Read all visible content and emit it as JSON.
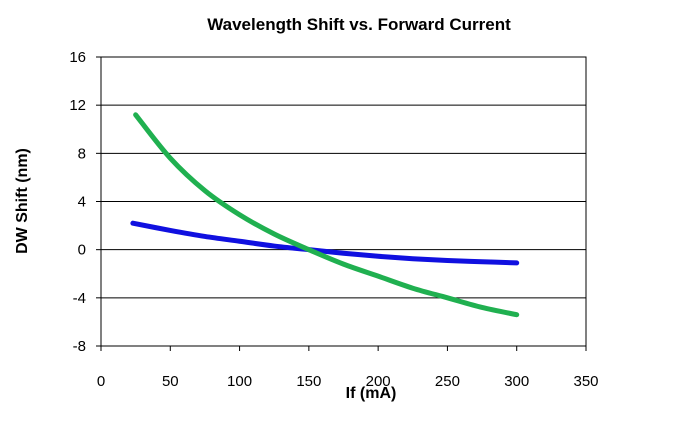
{
  "chart_data": {
    "type": "line",
    "title": "Wavelength Shift vs. Forward Current",
    "xlabel": "If (mA)",
    "ylabel": "DW Shift (nm)",
    "xlim": [
      0,
      350
    ],
    "ylim": [
      -8,
      16
    ],
    "x_ticks": [
      0,
      50,
      100,
      150,
      200,
      250,
      300,
      350
    ],
    "y_ticks": [
      -8,
      -4,
      0,
      4,
      8,
      12,
      16
    ],
    "grid": "horizontal",
    "legend": "none",
    "series": [
      {
        "color": "#1010E0",
        "x": [
          23,
          50,
          75,
          100,
          125,
          150,
          175,
          200,
          225,
          250,
          275,
          300
        ],
        "y": [
          2.2,
          1.6,
          1.1,
          0.7,
          0.3,
          0.0,
          -0.3,
          -0.55,
          -0.75,
          -0.9,
          -1.0,
          -1.1
        ]
      },
      {
        "color": "#20B050",
        "x": [
          25,
          50,
          75,
          100,
          125,
          150,
          175,
          200,
          225,
          250,
          275,
          300
        ],
        "y": [
          11.2,
          7.6,
          4.9,
          2.9,
          1.3,
          0.0,
          -1.2,
          -2.2,
          -3.2,
          -4.0,
          -4.8,
          -5.4
        ]
      }
    ]
  }
}
